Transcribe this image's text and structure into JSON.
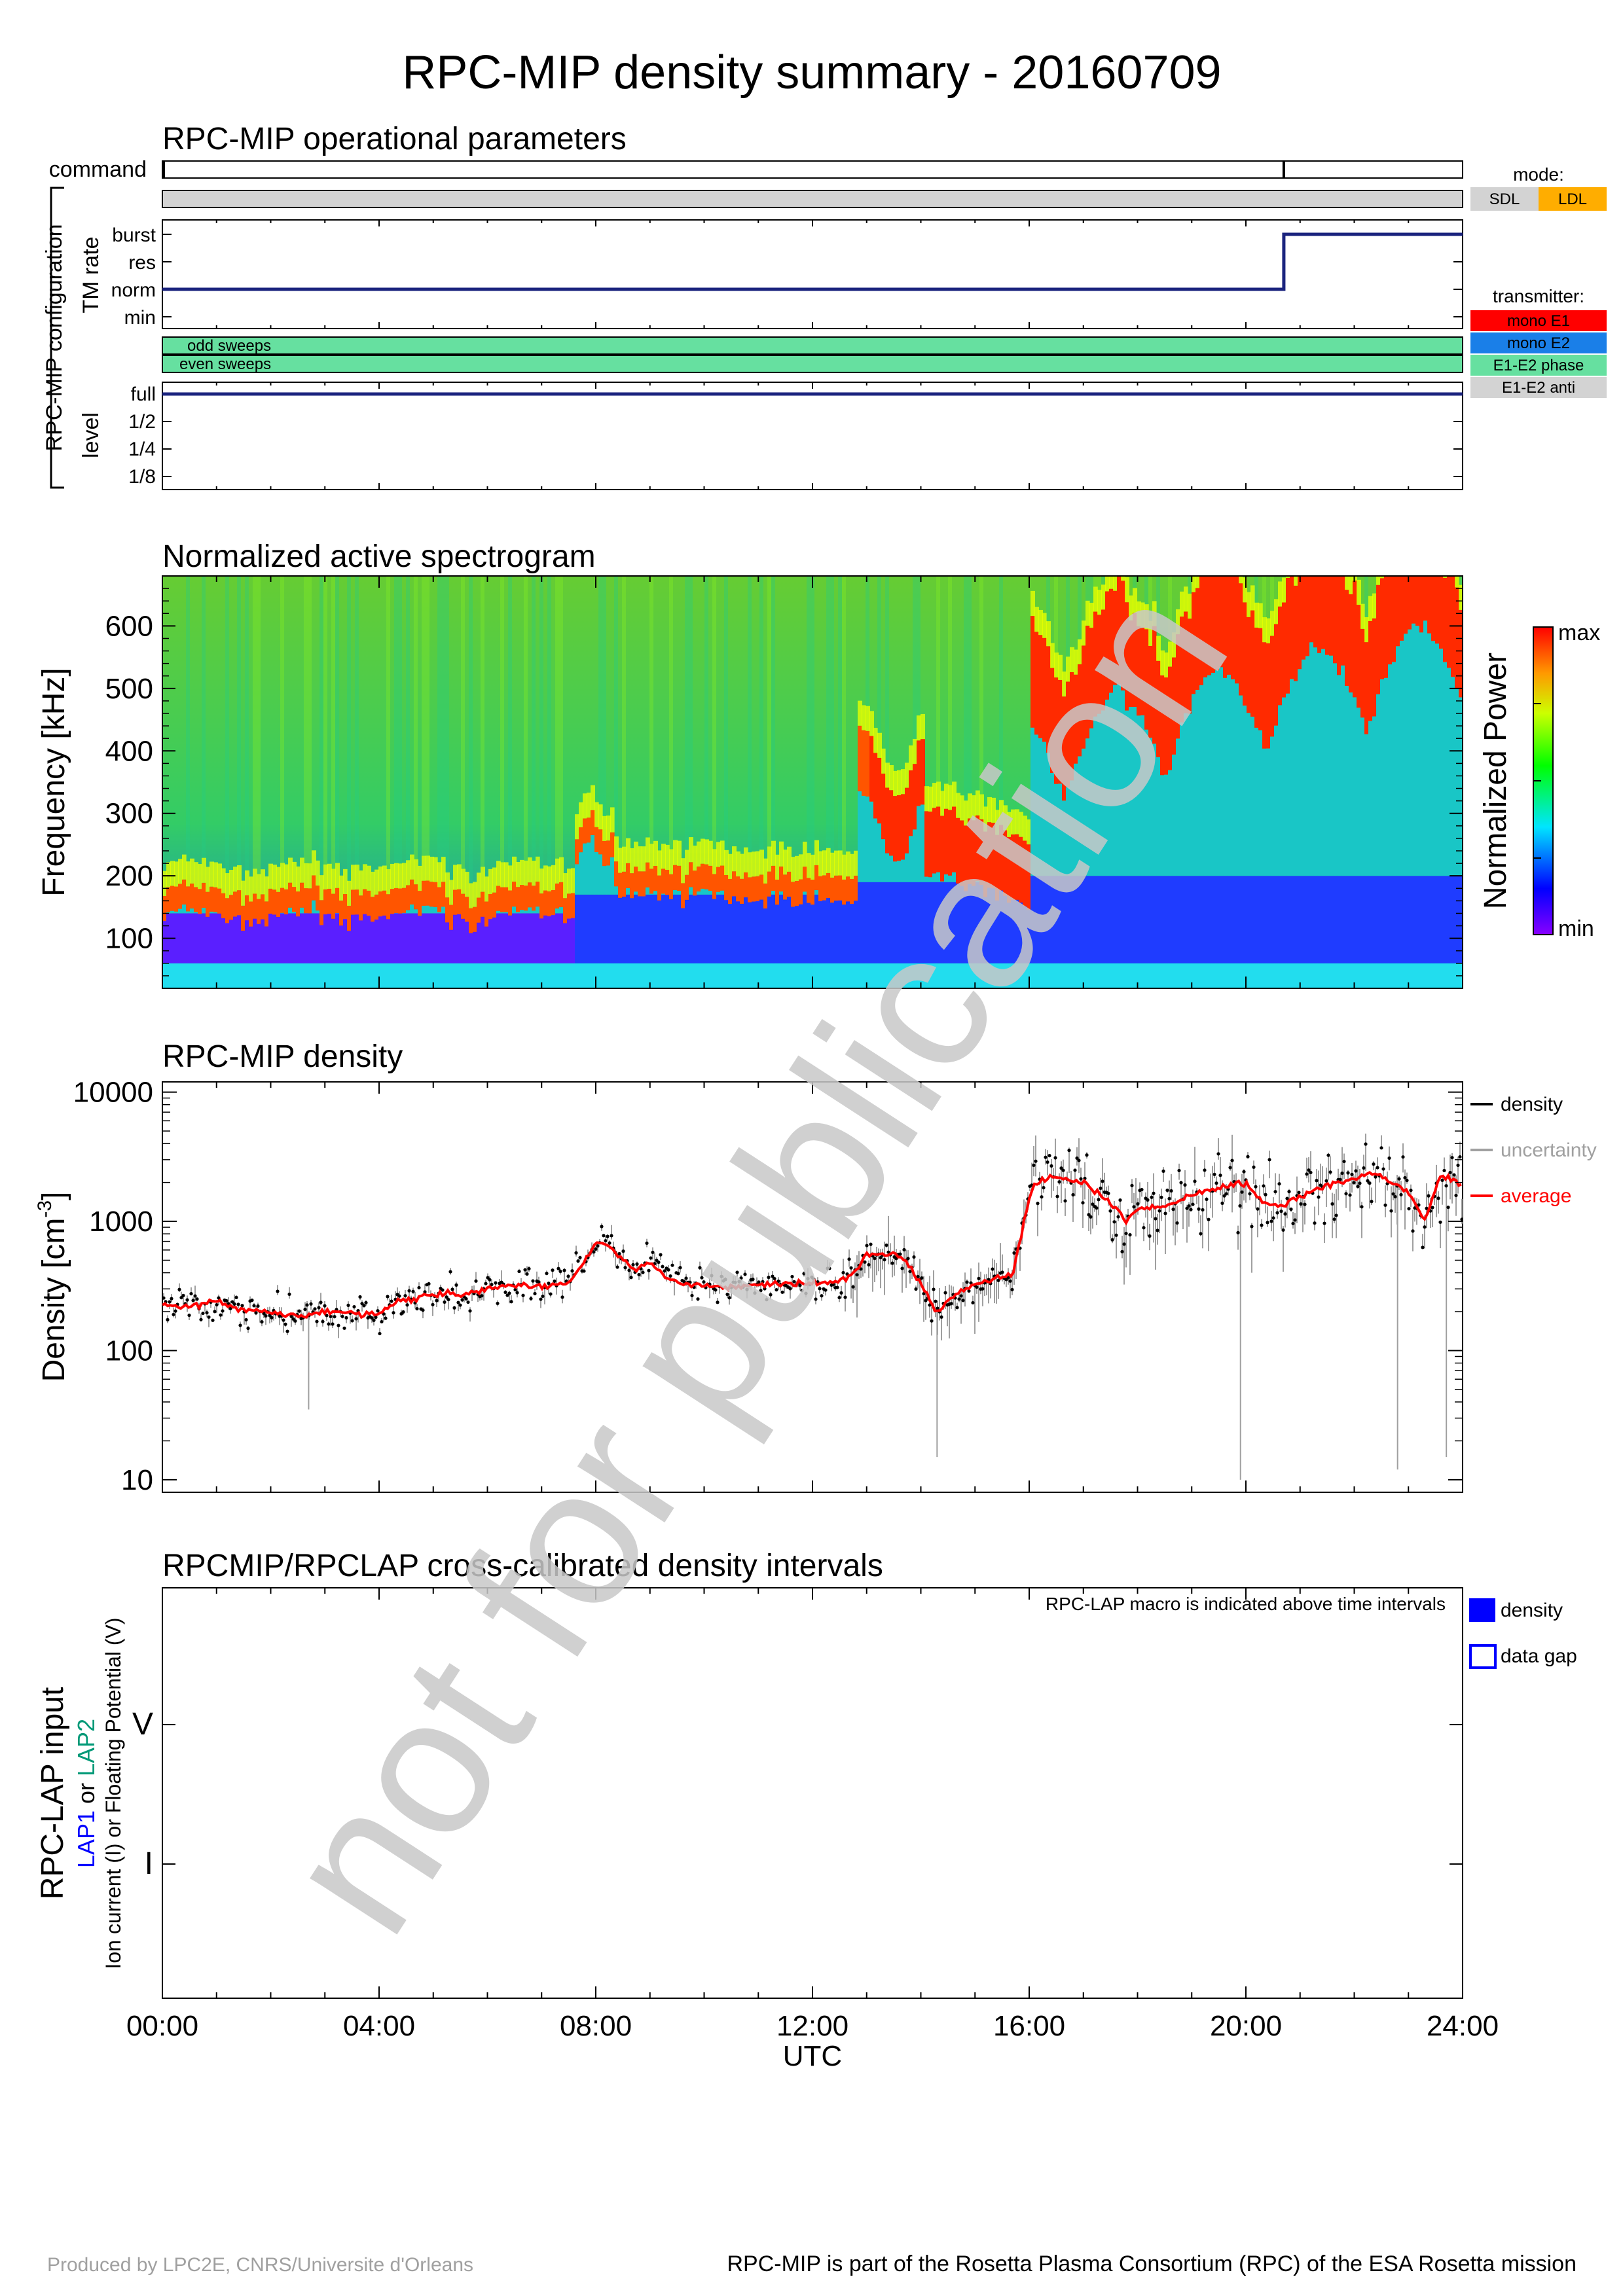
{
  "page": {
    "title": "RPC-MIP density summary - 20160709",
    "watermark": "not for publication",
    "footer_left": "Produced by LPC2E, CNRS/Universite d'Orleans",
    "footer_right": "RPC-MIP is part of the Rosetta Plasma Consortium (RPC) of the ESA Rosetta mission"
  },
  "colors": {
    "line_navy": "#1a237e",
    "sdl": "#d3d3d3",
    "ldl": "#ffad00",
    "mono_e1": "#ff0000",
    "mono_e2": "#1a7fe8",
    "e1e2_phase": "#66e0a0",
    "e1e2_anti": "#d3d3d3",
    "average": "#ff0000",
    "uncertainty": "#a0a0a0",
    "lap1": "#0000ff",
    "lap2": "#009977",
    "density_legend": "#0000ff"
  },
  "time_axis": {
    "tick_labels": [
      "00:00",
      "04:00",
      "08:00",
      "12:00",
      "16:00",
      "20:00",
      "24:00"
    ],
    "tick_hours": [
      0,
      4,
      8,
      12,
      16,
      20,
      24
    ],
    "label": "UTC"
  },
  "ops": {
    "title": "RPC-MIP operational parameters",
    "command_label": "command",
    "command_ticks_hours": [
      0,
      20.7
    ],
    "group_label": "RPC-MIP configuration",
    "tm_rate": {
      "axis_label": "TM rate",
      "levels": [
        "burst",
        "res",
        "norm",
        "min"
      ],
      "steps": [
        {
          "from": 0,
          "to": 20.7,
          "level": "norm"
        },
        {
          "from": 20.7,
          "to": 24,
          "level": "burst"
        }
      ]
    },
    "sweeps": {
      "odd": "odd sweeps",
      "even": "even sweeps"
    },
    "level": {
      "axis_label": "level",
      "levels": [
        "full",
        "1/2",
        "1/4",
        "1/8"
      ],
      "value": "full"
    },
    "mode_legend": {
      "title": "mode:",
      "items": [
        "SDL",
        "LDL"
      ]
    },
    "transmitter_legend": {
      "title": "transmitter:",
      "items": [
        "mono E1",
        "mono E2",
        "E1-E2 phase",
        "E1-E2 anti"
      ]
    }
  },
  "spectrogram": {
    "title": "Normalized active spectrogram",
    "ylabel": "Frequency [kHz]",
    "y_ticks": [
      100,
      200,
      300,
      400,
      500,
      600
    ],
    "ylim": [
      20,
      680
    ],
    "colorbar_label": "Normalized Power",
    "colorbar_max": "max",
    "colorbar_min": "min"
  },
  "chart_data": {
    "type": "scatter",
    "title": "RPC-MIP density",
    "xlabel": "UTC",
    "ylabel": "Density [cm-3]",
    "ylabel_main": "Density [cm",
    "ylabel_exp": "-3",
    "ylabel_close": "]",
    "scale": "log",
    "xlim": [
      0,
      24
    ],
    "ylim": [
      8,
      12000
    ],
    "y_ticks": [
      10,
      100,
      1000,
      10000
    ],
    "y_tick_labels": [
      "10",
      "100",
      "1000",
      "10000"
    ],
    "legend": [
      "density",
      "uncertainty",
      "average"
    ],
    "series": [
      {
        "name": "average",
        "x": [
          0,
          0.5,
          1,
          1.5,
          2,
          2.5,
          3,
          3.5,
          4,
          4.3,
          4.7,
          5,
          5.5,
          6,
          6.5,
          7,
          7.4,
          7.7,
          8,
          8.3,
          8.7,
          9,
          9.3,
          9.7,
          10,
          10.5,
          11,
          11.5,
          12,
          12.5,
          12.8,
          13,
          13.3,
          13.7,
          14,
          14.3,
          14.6,
          15,
          15.3,
          15.7,
          15.9,
          16.1,
          16.4,
          16.7,
          17,
          17.4,
          17.8,
          18,
          18.5,
          19,
          19.5,
          20,
          20.3,
          20.6,
          21,
          21.5,
          22,
          22.3,
          22.7,
          23,
          23.3,
          23.6,
          24
        ],
        "y": [
          230,
          215,
          240,
          205,
          200,
          185,
          200,
          195,
          190,
          240,
          255,
          280,
          265,
          300,
          320,
          310,
          330,
          420,
          700,
          620,
          430,
          470,
          370,
          330,
          320,
          310,
          320,
          335,
          330,
          345,
          410,
          570,
          560,
          520,
          330,
          200,
          270,
          330,
          350,
          390,
          1000,
          2000,
          2200,
          2100,
          1950,
          1500,
          1000,
          1250,
          1300,
          1600,
          1800,
          2000,
          1400,
          1300,
          1550,
          1900,
          2100,
          2400,
          2000,
          1700,
          1000,
          2300,
          1900
        ]
      },
      {
        "name": "uncertainty",
        "note": "grey uncertainty range per sample",
        "low_dips": [
          [
            2.7,
            35
          ],
          [
            14.3,
            15
          ],
          [
            19.9,
            10
          ],
          [
            22.8,
            12
          ],
          [
            23.7,
            15
          ]
        ]
      }
    ]
  },
  "lap": {
    "title": "RPCMIP/RPCLAP cross-calibrated density intervals",
    "note": "RPC-LAP macro is indicated above time intervals",
    "ylabel_main": "RPC-LAP input",
    "lap1": "LAP1",
    "or": "or",
    "lap2": "LAP2",
    "ylabel_sub": "Ion current (I) or Floating Potential (V)",
    "y_ticks": [
      "V",
      "I"
    ],
    "legend": [
      "density",
      "data gap"
    ]
  }
}
